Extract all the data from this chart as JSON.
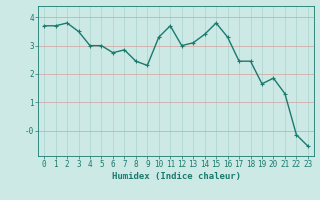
{
  "x": [
    0,
    1,
    2,
    3,
    4,
    5,
    6,
    7,
    8,
    9,
    10,
    11,
    12,
    13,
    14,
    15,
    16,
    17,
    18,
    19,
    20,
    21,
    22,
    23
  ],
  "y": [
    3.7,
    3.7,
    3.8,
    3.5,
    3.0,
    3.0,
    2.75,
    2.85,
    2.45,
    2.3,
    3.3,
    3.7,
    3.0,
    3.1,
    3.4,
    3.8,
    3.3,
    2.45,
    2.45,
    1.65,
    1.85,
    1.3,
    -0.15,
    -0.55
  ],
  "line_color": "#1a7a6e",
  "marker": "+",
  "marker_size": 3,
  "background_color": "#cce9e5",
  "grid_v_color": "#aad4cf",
  "grid_h_color": "#d4a0a0",
  "xlabel": "Humidex (Indice chaleur)",
  "xlabel_fontsize": 6.5,
  "tick_fontsize": 5.5,
  "ylim": [
    -0.9,
    4.4
  ],
  "xlim": [
    -0.5,
    23.5
  ],
  "xticks": [
    0,
    1,
    2,
    3,
    4,
    5,
    6,
    7,
    8,
    9,
    10,
    11,
    12,
    13,
    14,
    15,
    16,
    17,
    18,
    19,
    20,
    21,
    22,
    23
  ],
  "yticks": [
    0,
    1,
    2,
    3,
    4
  ],
  "ytick_labels": [
    "-0",
    "1",
    "2",
    "3",
    "4"
  ],
  "linewidth": 1.0,
  "fig_width": 3.2,
  "fig_height": 2.0,
  "dpi": 100
}
